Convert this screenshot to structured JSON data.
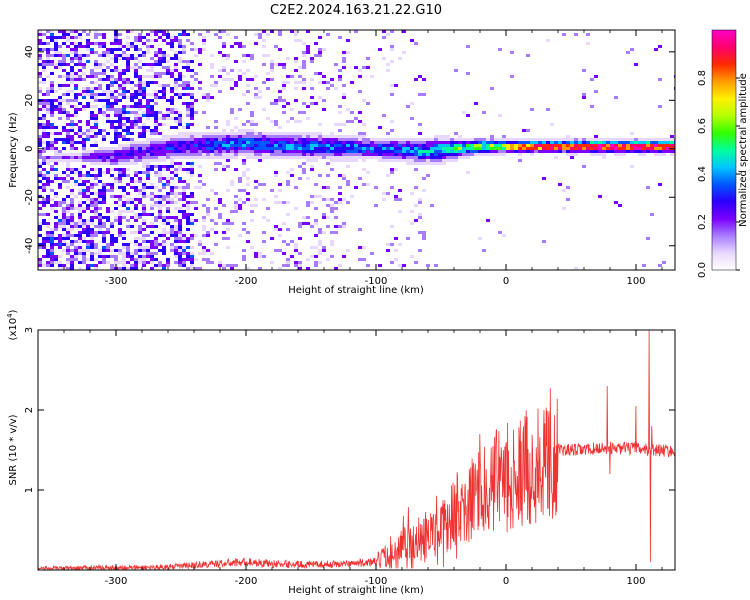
{
  "title": "C2E2.2024.163.21.22.G10",
  "chart_data": [
    {
      "type": "heatmap",
      "title": "C2E2.2024.163.21.22.G10",
      "xlabel": "Height of straight line (km)",
      "ylabel": "Frequency (Hz)",
      "xlim": [
        -360,
        130
      ],
      "ylim": [
        -50,
        49
      ],
      "xticks": [
        -300,
        -200,
        -100,
        0,
        100
      ],
      "yticks": [
        -40,
        -20,
        0,
        20,
        40
      ],
      "colorbar": {
        "label": "Normalized spectral amplitude",
        "range": [
          0.0,
          1.0
        ],
        "ticks": [
          0.0,
          0.2,
          0.4,
          0.6,
          0.8
        ],
        "colors": [
          "#ffffff",
          "#e8d8ff",
          "#a77cff",
          "#7a00ff",
          "#2a00ff",
          "#0057ff",
          "#00c8ff",
          "#00ff9c",
          "#33ff00",
          "#b6ff00",
          "#fff000",
          "#ff9c00",
          "#ff2a00",
          "#ff006e",
          "#ff00c8"
        ]
      },
      "band": {
        "center_freq": [
          [
            -360,
            -4
          ],
          [
            -300,
            -3
          ],
          [
            -250,
            1
          ],
          [
            -200,
            2
          ],
          [
            -150,
            1
          ],
          [
            -100,
            0
          ],
          [
            -60,
            -1
          ],
          [
            -40,
            0
          ],
          [
            -20,
            1
          ],
          [
            0,
            1
          ],
          [
            60,
            1
          ],
          [
            100,
            1
          ],
          [
            130,
            1
          ]
        ],
        "half_width": [
          [
            -360,
            0
          ],
          [
            -300,
            5
          ],
          [
            -250,
            6
          ],
          [
            -200,
            6
          ],
          [
            -150,
            6
          ],
          [
            -100,
            5
          ],
          [
            -50,
            6
          ],
          [
            -30,
            4
          ],
          [
            0,
            3
          ],
          [
            130,
            3
          ]
        ],
        "peak_amplitude": [
          [
            -360,
            0.15
          ],
          [
            -300,
            0.25
          ],
          [
            -250,
            0.3
          ],
          [
            -200,
            0.38
          ],
          [
            -150,
            0.38
          ],
          [
            -100,
            0.36
          ],
          [
            -60,
            0.42
          ],
          [
            -30,
            0.55
          ],
          [
            0,
            0.75
          ],
          [
            50,
            0.85
          ],
          [
            130,
            0.9
          ]
        ]
      }
    },
    {
      "type": "line",
      "xlabel": "Height of straight line (km)",
      "ylabel": "SNR (10 * v/v)",
      "exponent_label": "(x10",
      "exponent_sup": "4",
      "exponent_close": ")",
      "xlim": [
        -360,
        130
      ],
      "ylim": [
        0,
        3
      ],
      "xticks": [
        -300,
        -200,
        -100,
        0,
        100
      ],
      "yticks": [
        1,
        2,
        3
      ],
      "series": [
        {
          "color": "#ee3333",
          "x": [
            -360,
            -340,
            -320,
            -300,
            -280,
            -260,
            -240,
            -220,
            -200,
            -180,
            -160,
            -140,
            -120,
            -100,
            -90,
            -80,
            -70,
            -60,
            -50,
            -40,
            -30,
            -20,
            -15,
            -10,
            0,
            10,
            20,
            30,
            40,
            50,
            60,
            70,
            80,
            90,
            100,
            110,
            120,
            130
          ],
          "y": [
            0.02,
            0.02,
            0.03,
            0.03,
            0.03,
            0.04,
            0.06,
            0.08,
            0.1,
            0.08,
            0.07,
            0.07,
            0.08,
            0.1,
            0.2,
            0.3,
            0.38,
            0.45,
            0.55,
            0.7,
            0.85,
            1.0,
            1.1,
            1.1,
            1.15,
            1.25,
            1.35,
            1.45,
            1.5,
            1.5,
            1.5,
            1.52,
            1.53,
            1.52,
            1.52,
            1.5,
            1.5,
            1.48
          ],
          "spikes": [
            [
              -20,
              1.7
            ],
            [
              -10,
              1.55
            ],
            [
              0,
              1.6
            ],
            [
              13,
              1.7
            ],
            [
              78,
              2.3
            ],
            [
              80,
              1.2
            ],
            [
              100,
              2.05
            ],
            [
              110,
              3.0
            ],
            [
              111,
              0.1
            ],
            [
              112,
              1.8
            ]
          ]
        }
      ]
    }
  ]
}
